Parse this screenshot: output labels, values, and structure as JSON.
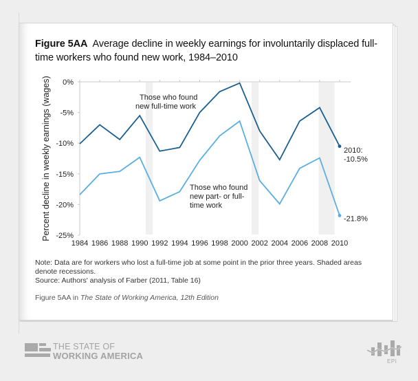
{
  "figure": {
    "label": "Figure 5AA",
    "title": "Average decline in weekly earnings for involuntarily displaced full-time workers who found new work, 1984–2010"
  },
  "notes": {
    "note": "Note: Data are for workers who lost a full-time job at some point in the prior three years. Shaded areas denote recessions.",
    "source": "Source: Authors' analysis of Farber (2011, Table 16)"
  },
  "caption": {
    "label": "Figure 5AA",
    "connector": " in ",
    "publication": "The State of Working America, 12th Edition"
  },
  "footer": {
    "brand_line1": "THE STATE OF",
    "brand_line2": "WORKING AMERICA",
    "epi_label": "EPI"
  },
  "colors": {
    "full_time": "#1a5f8f",
    "part_or_full_time": "#5aaee0",
    "recession": "#f0f0f0",
    "axis": "#c8c8c8"
  },
  "chart_data": {
    "type": "line",
    "title": "Average decline in weekly earnings for involuntarily displaced full-time workers who found new work, 1984–2010",
    "xlabel": "",
    "ylabel": "Percent decline in weekly earnings (wages)",
    "x": [
      1984,
      1986,
      1988,
      1990,
      1992,
      1994,
      1996,
      1998,
      2000,
      2002,
      2004,
      2006,
      2008,
      2010
    ],
    "x_tick_labels": [
      "1984",
      "1986",
      "1988",
      "1990",
      "1992",
      "1994",
      "1996",
      "1998",
      "2000",
      "2002",
      "2004",
      "2006",
      "2008",
      "2010"
    ],
    "y_ticks": [
      0,
      -5,
      -10,
      -15,
      -20,
      -25
    ],
    "y_tick_labels": [
      "0%",
      "-5%",
      "-10%",
      "-15%",
      "-20%",
      "-25%"
    ],
    "ylim": [
      -25,
      0
    ],
    "grid": false,
    "recessions": [
      {
        "start": 1990.6,
        "end": 1991.3
      },
      {
        "start": 2001.2,
        "end": 2001.9
      },
      {
        "start": 2007.9,
        "end": 2009.5
      }
    ],
    "series": [
      {
        "name": "Those who found new full-time work",
        "label_lines": [
          "Those who found",
          "new full-time work"
        ],
        "color": "#1a5f8f",
        "values": [
          -10.1,
          -7.0,
          -9.4,
          -5.5,
          -11.3,
          -10.7,
          -5.0,
          -1.6,
          -0.2,
          -8.0,
          -12.7,
          -6.4,
          -4.2,
          -10.5
        ],
        "end_label_lines": [
          "2010:",
          "-10.5%"
        ]
      },
      {
        "name": "Those who found new part- or full-time work",
        "label_lines": [
          "Those who found",
          "new part- or full-",
          "time work"
        ],
        "color": "#5aaee0",
        "values": [
          -18.4,
          -15.0,
          -14.6,
          -12.3,
          -19.4,
          -17.9,
          -12.8,
          -8.8,
          -6.4,
          -16.1,
          -19.9,
          -14.1,
          -12.4,
          -21.8
        ],
        "end_label_lines": [
          "-21.8%"
        ]
      }
    ]
  }
}
